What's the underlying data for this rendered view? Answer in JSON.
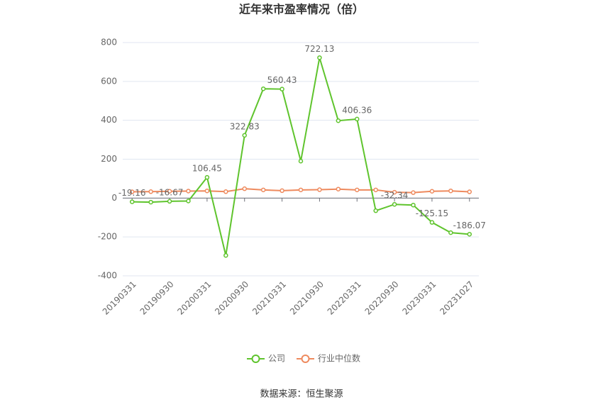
{
  "chart_data": {
    "type": "line",
    "title": "近年来市盈率情况（倍）",
    "categories": [
      "20190331",
      null,
      "20190930",
      null,
      "20200331",
      null,
      "20200930",
      null,
      "20210331",
      null,
      "20210930",
      null,
      "20220331",
      null,
      "20220930",
      null,
      "20230331",
      null,
      "20231027"
    ],
    "series": [
      {
        "name": "公司",
        "color": "#5fc42d",
        "values": [
          -19.16,
          -21,
          -16.67,
          -15,
          106.45,
          -295,
          322.83,
          562,
          560.43,
          190,
          722.13,
          398,
          406.36,
          -65,
          -32.34,
          -36,
          -125.15,
          -178,
          -186.07
        ],
        "value_labels": [
          "-19.16",
          null,
          "-16.67",
          null,
          "106.45",
          null,
          "322.83",
          null,
          "560.43",
          null,
          "722.13",
          null,
          "406.36",
          null,
          "-32.34",
          null,
          "-125.15",
          null,
          "-186.07"
        ]
      },
      {
        "name": "行业中位数",
        "color": "#ee8a5e",
        "values": [
          32,
          33,
          35,
          36,
          37,
          33,
          48,
          42,
          38,
          42,
          43,
          46,
          42,
          42,
          30,
          28,
          35,
          37,
          32
        ]
      }
    ],
    "ylim": [
      -400,
      800
    ],
    "yticks": [
      -400,
      -200,
      0,
      200,
      400,
      600,
      800
    ],
    "grid": true,
    "legend": "bottom",
    "source": "数据来源：恒生聚源"
  }
}
